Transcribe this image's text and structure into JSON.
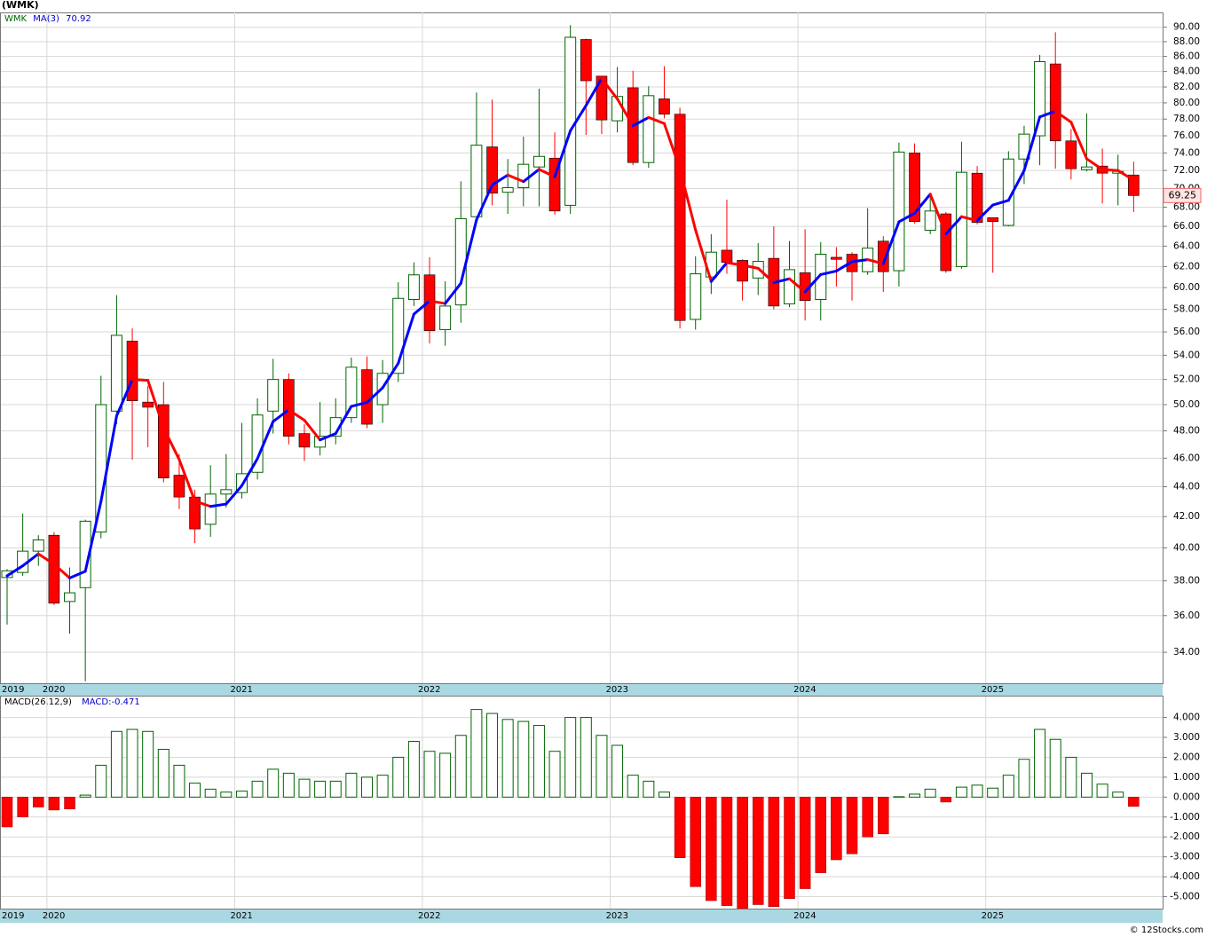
{
  "chart_data": [
    {
      "type": "candlestick",
      "title": "(WMK)",
      "symbol": "WMK",
      "categories": [
        "2019",
        null,
        null,
        "2020",
        null,
        null,
        null,
        null,
        null,
        null,
        null,
        null,
        null,
        null,
        null,
        "2021",
        null,
        null,
        null,
        null,
        null,
        null,
        null,
        null,
        null,
        null,
        null,
        "2022",
        null,
        null,
        null,
        null,
        null,
        null,
        null,
        null,
        null,
        null,
        null,
        "2023",
        null,
        null,
        null,
        null,
        null,
        null,
        null,
        null,
        null,
        null,
        null,
        "2024",
        null,
        null,
        null,
        null,
        null,
        null,
        null,
        null,
        null,
        null,
        null,
        "2025",
        null,
        null,
        null,
        null,
        null,
        null,
        null,
        null,
        null
      ],
      "open": [
        38.2,
        38.5,
        39.8,
        40.8,
        36.8,
        37.6,
        41.0,
        49.5,
        55.2,
        50.2,
        50.0,
        44.8,
        43.3,
        41.5,
        43.5,
        43.6,
        45.0,
        49.5,
        52.0,
        47.8,
        46.8,
        47.6,
        49.0,
        52.8,
        50.0,
        52.5,
        58.9,
        61.2,
        56.2,
        58.4,
        67.0,
        74.7,
        69.6,
        70.1,
        72.4,
        73.4,
        68.2,
        88.3,
        83.4,
        77.8,
        81.9,
        72.9,
        80.5,
        78.6,
        57.1,
        61.0,
        63.6,
        62.6,
        60.9,
        62.8,
        58.5,
        61.4,
        58.9,
        62.9,
        63.2,
        61.5,
        64.5,
        61.6,
        74.0,
        65.6,
        67.3,
        62.0,
        71.7,
        66.9,
        66.1,
        73.3,
        76.0,
        85.0,
        75.4,
        72.1,
        72.5,
        71.7,
        71.5
      ],
      "high": [
        38.7,
        42.2,
        40.8,
        41.0,
        38.8,
        41.8,
        52.3,
        59.3,
        56.3,
        51.5,
        51.8,
        46.3,
        43.8,
        45.5,
        46.3,
        48.6,
        50.5,
        53.7,
        52.5,
        48.5,
        50.2,
        50.5,
        53.8,
        53.9,
        53.6,
        60.5,
        62.4,
        62.9,
        60.6,
        70.8,
        81.3,
        80.4,
        73.3,
        75.9,
        81.8,
        76.4,
        90.3,
        88.4,
        83.4,
        84.6,
        84.1,
        82.1,
        84.7,
        79.4,
        63.0,
        65.2,
        68.8,
        62.7,
        64.3,
        66.0,
        64.5,
        65.7,
        64.4,
        63.9,
        63.4,
        67.9,
        65.0,
        75.2,
        75.1,
        69.3,
        67.5,
        75.3,
        72.5,
        66.9,
        74.2,
        77.2,
        86.2,
        89.3,
        76.8,
        78.7,
        74.5,
        73.8,
        73.0
      ],
      "low": [
        35.5,
        38.3,
        38.9,
        36.6,
        35.0,
        32.5,
        40.6,
        48.5,
        45.9,
        46.8,
        44.3,
        42.5,
        40.3,
        40.7,
        42.6,
        43.2,
        44.5,
        47.8,
        47.0,
        45.8,
        46.2,
        47.0,
        48.6,
        48.2,
        48.6,
        51.8,
        58.3,
        55.0,
        54.8,
        56.8,
        66.3,
        68.2,
        67.3,
        68.1,
        68.1,
        67.2,
        67.3,
        76.1,
        76.2,
        76.4,
        72.6,
        72.3,
        78.1,
        56.3,
        56.2,
        59.4,
        61.3,
        58.8,
        59.3,
        58.0,
        58.2,
        57.0,
        57.0,
        60.1,
        58.8,
        61.2,
        59.6,
        60.1,
        66.3,
        65.2,
        61.4,
        61.8,
        66.2,
        61.4,
        66.0,
        70.5,
        72.6,
        72.2,
        71.0,
        71.9,
        68.4,
        68.2,
        67.5
      ],
      "close": [
        38.6,
        39.8,
        40.5,
        36.7,
        37.3,
        41.7,
        50.0,
        55.7,
        50.3,
        49.8,
        44.6,
        43.3,
        41.2,
        43.5,
        43.8,
        44.9,
        49.2,
        52.0,
        47.6,
        46.8,
        47.6,
        49.0,
        53.0,
        48.5,
        52.5,
        59.0,
        61.2,
        56.1,
        58.3,
        66.8,
        74.9,
        69.5,
        70.1,
        72.7,
        73.6,
        67.6,
        88.6,
        82.8,
        77.9,
        80.8,
        72.9,
        80.9,
        78.6,
        57.0,
        61.3,
        63.4,
        62.4,
        60.6,
        62.5,
        58.3,
        61.7,
        58.8,
        63.2,
        62.7,
        61.5,
        63.8,
        61.5,
        74.1,
        66.5,
        67.6,
        61.6,
        71.8,
        66.4,
        66.5,
        73.3,
        76.2,
        85.3,
        75.4,
        72.2,
        72.4,
        71.7,
        71.9,
        69.25
      ],
      "ma": {
        "name": "MA(3)",
        "rising_color": "#0000ff",
        "falling_color": "#ff0000",
        "values": [
          38.3,
          38.9,
          39.63,
          39.0,
          38.17,
          38.57,
          43.0,
          49.13,
          52.0,
          51.93,
          48.23,
          45.9,
          43.03,
          42.67,
          42.83,
          44.07,
          45.97,
          48.7,
          49.6,
          48.8,
          47.33,
          47.8,
          49.87,
          50.17,
          51.33,
          53.33,
          57.57,
          58.77,
          58.53,
          60.4,
          66.67,
          70.4,
          71.5,
          70.77,
          72.13,
          71.3,
          76.6,
          79.67,
          83.1,
          80.5,
          77.2,
          78.2,
          77.47,
          72.17,
          65.63,
          60.57,
          62.37,
          62.13,
          61.83,
          60.47,
          60.83,
          59.6,
          61.23,
          61.57,
          62.47,
          62.67,
          62.27,
          66.47,
          67.37,
          69.4,
          65.23,
          67.0,
          66.6,
          68.23,
          68.73,
          72.0,
          78.27,
          78.97,
          77.63,
          73.33,
          72.1,
          72.0,
          70.92
        ]
      },
      "up_color": "#006400",
      "down_color": "#ff0000",
      "log_scale": true,
      "grid": true,
      "ylim": [
        32.4,
        92.1
      ],
      "yticks": [
        {
          "value": 34,
          "label": "34.00"
        },
        {
          "value": 36,
          "label": "36.00"
        },
        {
          "value": 38,
          "label": "38.00"
        },
        {
          "value": 40,
          "label": "40.00"
        },
        {
          "value": 42,
          "label": "42.00"
        },
        {
          "value": 44,
          "label": "44.00"
        },
        {
          "value": 46,
          "label": "46.00"
        },
        {
          "value": 48,
          "label": "48.00"
        },
        {
          "value": 50,
          "label": "50.00"
        },
        {
          "value": 52,
          "label": "52.00"
        },
        {
          "value": 54,
          "label": "54.00"
        },
        {
          "value": 56,
          "label": "56.00"
        },
        {
          "value": 58,
          "label": "58.00"
        },
        {
          "value": 60,
          "label": "60.00"
        },
        {
          "value": 62,
          "label": "62.00"
        },
        {
          "value": 64,
          "label": "64.00"
        },
        {
          "value": 66,
          "label": "66.00"
        },
        {
          "value": 68,
          "label": "68.00"
        },
        {
          "value": 70,
          "label": "70.00"
        },
        {
          "value": 72,
          "label": "72.00"
        },
        {
          "value": 74,
          "label": "74.00"
        },
        {
          "value": 76,
          "label": "76.00"
        },
        {
          "value": 78,
          "label": "78.00"
        },
        {
          "value": 80,
          "label": "80.00"
        },
        {
          "value": 82,
          "label": "82.00"
        },
        {
          "value": 84,
          "label": "84.00"
        },
        {
          "value": 86,
          "label": "86.00"
        },
        {
          "value": 88,
          "label": "88.00"
        },
        {
          "value": 90,
          "label": "90.00"
        }
      ]
    },
    {
      "type": "bar",
      "name": "MACD(26,12,9)",
      "value_name": "MACD:",
      "values": [
        -1.5,
        -1.0,
        -0.5,
        -0.65,
        -0.6,
        0.1,
        1.6,
        3.3,
        3.4,
        3.3,
        2.4,
        1.6,
        0.7,
        0.4,
        0.25,
        0.3,
        0.8,
        1.4,
        1.2,
        0.9,
        0.8,
        0.8,
        1.2,
        1.0,
        1.1,
        2.0,
        2.8,
        2.3,
        2.2,
        3.1,
        4.4,
        4.2,
        3.9,
        3.8,
        3.6,
        2.3,
        4.0,
        4.0,
        3.1,
        2.6,
        1.1,
        0.8,
        0.25,
        -3.05,
        -4.5,
        -5.2,
        -5.45,
        -5.6,
        -5.4,
        -5.5,
        -5.1,
        -4.6,
        -3.8,
        -3.15,
        -2.85,
        -2.0,
        -1.85,
        0.02,
        0.15,
        0.4,
        -0.25,
        0.5,
        0.6,
        0.45,
        1.1,
        1.9,
        3.4,
        2.9,
        2.0,
        1.2,
        0.65,
        0.25,
        -0.471
      ],
      "up_color": "#006400",
      "down_color": "#ff0000",
      "grid": true,
      "ylim": [
        -5.6,
        5.05
      ],
      "yticks": [
        {
          "value": -5,
          "label": "-5.000"
        },
        {
          "value": -4,
          "label": "-4.000"
        },
        {
          "value": -3,
          "label": "-3.000"
        },
        {
          "value": -2,
          "label": "-2.000"
        },
        {
          "value": -1,
          "label": "-1.000"
        },
        {
          "value": 0,
          "label": "0.000"
        },
        {
          "value": 1,
          "label": "1.000"
        },
        {
          "value": 2,
          "label": "2.000"
        },
        {
          "value": 3,
          "label": "3.000"
        },
        {
          "value": 4,
          "label": "4.000"
        }
      ]
    }
  ],
  "footer": "© 12Stocks.com"
}
